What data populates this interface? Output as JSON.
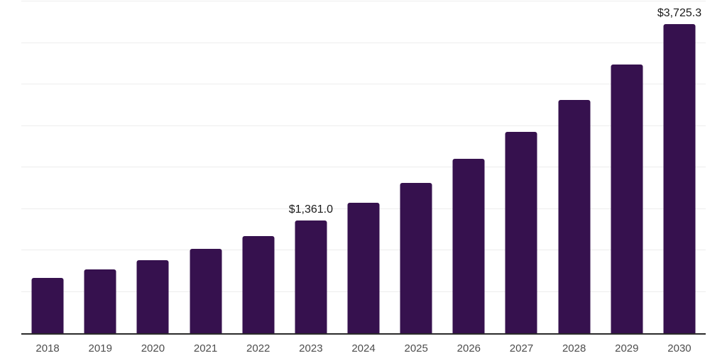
{
  "chart_data": {
    "type": "bar",
    "title": "",
    "xlabel": "",
    "ylabel": "",
    "categories": [
      "2018",
      "2019",
      "2020",
      "2021",
      "2022",
      "2023",
      "2024",
      "2025",
      "2026",
      "2027",
      "2028",
      "2029",
      "2030"
    ],
    "values": [
      665,
      770,
      880,
      1015,
      1170,
      1361.0,
      1570,
      1810,
      2100,
      2425,
      2810,
      3240,
      3725.3
    ],
    "data_labels": {
      "2023": "$1,361.0",
      "2030": "$3,725.3"
    },
    "ylim": [
      0,
      4000
    ],
    "gridline_interval": 500,
    "grid": true,
    "legend_position": "none",
    "colors": {
      "bar": "#36114e",
      "axis_line": "#2b2b2b",
      "gridline": "#ededed",
      "tick_label": "#4d4d4d",
      "data_label": "#1a1a1a",
      "background": "#ffffff"
    }
  }
}
